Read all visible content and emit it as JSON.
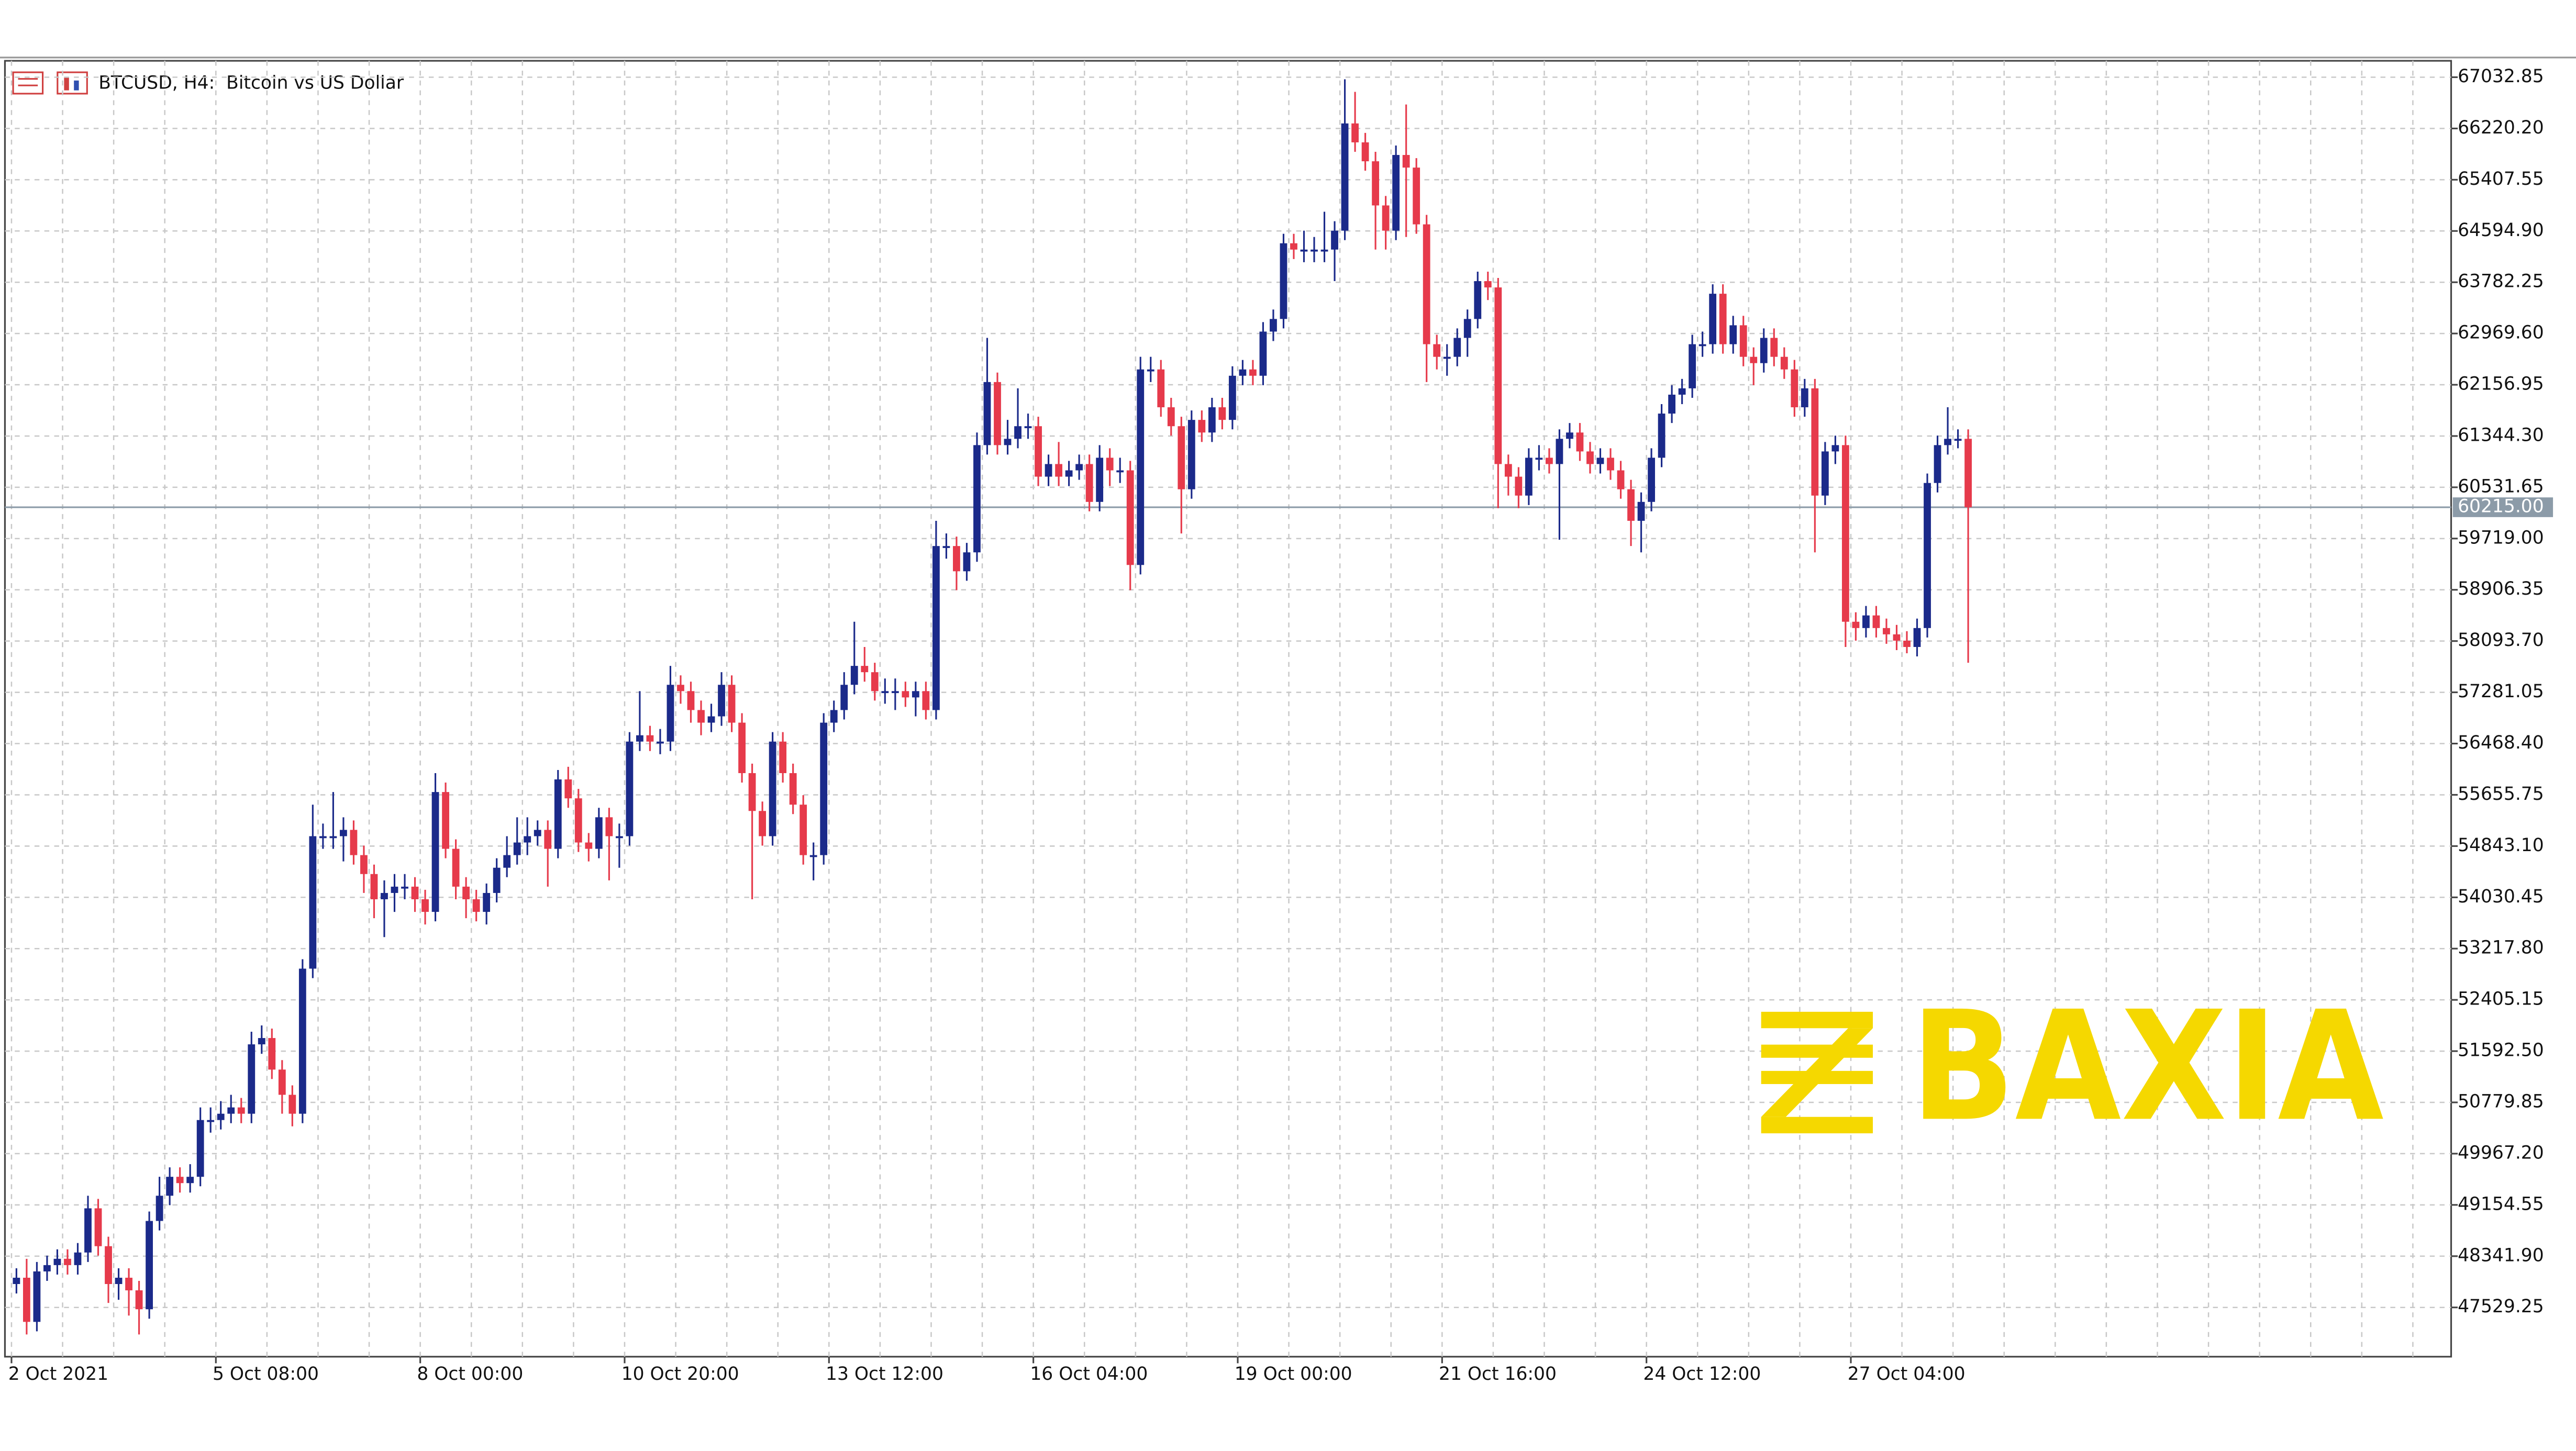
{
  "chart_data": {
    "type": "candlestick",
    "title": "BTCUSD, H4:  Bitcoin vs US Dollar",
    "watermark": "BAXIA",
    "colors": {
      "up": "#1b2a8a",
      "down": "#e63a4b",
      "grid": "#c8c8c8",
      "last": "#8c9ba8",
      "watermark": "#f5d800"
    },
    "grid": true,
    "categories": [
      "2 Oct 2021",
      null,
      null,
      null,
      null,
      null,
      null,
      null,
      null,
      null,
      null,
      null,
      null,
      null,
      null,
      null,
      null,
      null,
      null,
      null,
      "5 Oct 08:00",
      null,
      null,
      null,
      null,
      null,
      null,
      null,
      null,
      null,
      null,
      null,
      null,
      null,
      null,
      null,
      null,
      null,
      null,
      null,
      "8 Oct 00:00",
      null,
      null,
      null,
      null,
      null,
      null,
      null,
      null,
      null,
      null,
      null,
      null,
      null,
      null,
      null,
      null,
      null,
      null,
      null,
      "10 Oct 20:00",
      null,
      null,
      null,
      null,
      null,
      null,
      null,
      null,
      null,
      null,
      null,
      null,
      null,
      null,
      null,
      null,
      null,
      null,
      null,
      "13 Oct 12:00",
      null,
      null,
      null,
      null,
      null,
      null,
      null,
      null,
      null,
      null,
      null,
      null,
      null,
      null,
      null,
      null,
      null,
      null,
      null,
      "16 Oct 04:00",
      null,
      null,
      null,
      null,
      null,
      null,
      null,
      null,
      null,
      null,
      null,
      null,
      null,
      null,
      null,
      null,
      null,
      null,
      null,
      "19 Oct 00:00",
      null,
      null,
      null,
      null,
      null,
      null,
      null,
      null,
      null,
      null,
      null,
      null,
      null,
      null,
      null,
      null,
      null,
      null,
      null,
      "21 Oct 16:00",
      null,
      null,
      null,
      null,
      null,
      null,
      null,
      null,
      null,
      null,
      null,
      null,
      null,
      null,
      null,
      null,
      null,
      null,
      null,
      "24 Oct 12:00",
      null,
      null,
      null,
      null,
      null,
      null,
      null,
      null,
      null,
      null,
      null,
      null,
      null,
      null,
      null,
      null,
      null,
      null,
      null,
      "27 Oct 04:00",
      null,
      null,
      null,
      null,
      null,
      null,
      null,
      null,
      null,
      null,
      null
    ],
    "open": [
      47900,
      48000,
      47300,
      48100,
      48200,
      48300,
      48200,
      48400,
      49100,
      48500,
      47900,
      48000,
      47800,
      47500,
      48900,
      49300,
      49600,
      49500,
      49600,
      50500,
      50500,
      50600,
      50700,
      50600,
      51700,
      51800,
      51300,
      50900,
      50600,
      52900,
      55000,
      55000,
      55000,
      55100,
      54700,
      54400,
      54000,
      54100,
      54200,
      54200,
      54000,
      53800,
      55700,
      54800,
      54200,
      54000,
      53800,
      54100,
      54500,
      54700,
      54900,
      55000,
      55100,
      54800,
      55900,
      55600,
      54900,
      54800,
      55300,
      55000,
      55000,
      56500,
      56600,
      56500,
      56500,
      57400,
      57300,
      57000,
      56800,
      56900,
      57400,
      56800,
      56000,
      55400,
      55000,
      56500,
      56000,
      55500,
      54700,
      54700,
      56800,
      57000,
      57400,
      57700,
      57600,
      57300,
      57300,
      57300,
      57200,
      57300,
      57000,
      59600,
      59600,
      59200,
      59500,
      61200,
      62200,
      61200,
      61300,
      61500,
      61500,
      60700,
      60900,
      60700,
      60800,
      60900,
      60300,
      61000,
      60800,
      60800,
      59300,
      62400,
      62400,
      61800,
      61500,
      60500,
      61600,
      61400,
      61800,
      61600,
      62300,
      62400,
      62300,
      63000,
      63200,
      64400,
      64300,
      64300,
      64300,
      64300,
      64600,
      66300,
      66000,
      65700,
      65000,
      64600,
      65800,
      65600,
      64700,
      62800,
      62600,
      62600,
      62900,
      63200,
      63800,
      63700,
      60900,
      60700,
      60400,
      61000,
      61000,
      60900,
      61300,
      61400,
      61100,
      60900,
      61000,
      60800,
      60500,
      60000,
      60300,
      61000,
      61700,
      62000,
      62100,
      62800,
      62800,
      63600,
      62800,
      63100,
      62600,
      62500,
      62900,
      62600,
      62400,
      61800,
      62100,
      60400,
      61100,
      61200,
      58400,
      58300,
      58500,
      58300,
      58200,
      58100,
      58000,
      58300,
      60600,
      61200,
      61300,
      61300
    ],
    "high": [
      48150,
      48300,
      48250,
      48350,
      48450,
      48450,
      48550,
      49300,
      49250,
      48650,
      48150,
      48150,
      47950,
      49050,
      49600,
      49750,
      49750,
      49800,
      50700,
      50700,
      50800,
      50900,
      50850,
      51900,
      52000,
      51950,
      51450,
      51050,
      53050,
      55500,
      55200,
      55700,
      55300,
      55250,
      54850,
      54550,
      54300,
      54400,
      54400,
      54350,
      54150,
      56000,
      55850,
      54950,
      54350,
      54150,
      54250,
      54650,
      55000,
      55300,
      55300,
      55250,
      55250,
      56050,
      56100,
      55750,
      55050,
      55450,
      55450,
      55200,
      56650,
      57300,
      56750,
      56700,
      57700,
      57550,
      57450,
      57150,
      57100,
      57600,
      57550,
      56950,
      56150,
      55550,
      56650,
      56650,
      56150,
      55650,
      54900,
      56950,
      57150,
      57600,
      58400,
      58000,
      57750,
      57500,
      57500,
      57450,
      57450,
      57450,
      60000,
      59800,
      59750,
      59650,
      61400,
      62900,
      62350,
      61600,
      62100,
      61700,
      61650,
      61050,
      61250,
      60950,
      61050,
      61050,
      61200,
      61150,
      61000,
      60950,
      62600,
      62600,
      62550,
      61950,
      61650,
      61750,
      61750,
      61950,
      61950,
      62450,
      62550,
      62550,
      63150,
      63350,
      64550,
      64550,
      64600,
      64500,
      64900,
      64750,
      67000,
      66800,
      66150,
      65850,
      65150,
      65950,
      66600,
      65750,
      64850,
      62950,
      62800,
      63050,
      63350,
      63950,
      63950,
      63850,
      61050,
      60850,
      61150,
      61200,
      61150,
      61450,
      61550,
      61550,
      61250,
      61150,
      61150,
      60950,
      60650,
      60450,
      61150,
      61850,
      62150,
      62250,
      62950,
      63000,
      63750,
      63750,
      63250,
      63250,
      62750,
      63050,
      63050,
      62750,
      62550,
      62250,
      62250,
      61250,
      61350,
      61350,
      58550,
      58650,
      58650,
      58450,
      58350,
      58250,
      58450,
      60750,
      61350,
      61800,
      61450,
      61450
    ],
    "low": [
      47750,
      47100,
      47150,
      47950,
      48050,
      48050,
      48050,
      48250,
      48350,
      47600,
      47650,
      47400,
      47100,
      47350,
      48750,
      49150,
      49350,
      49350,
      49450,
      50300,
      50350,
      50450,
      50450,
      50450,
      51550,
      51150,
      50600,
      50400,
      50450,
      52750,
      54800,
      54800,
      54600,
      54550,
      54100,
      53700,
      53400,
      53800,
      54000,
      53800,
      53600,
      53650,
      54650,
      54000,
      53700,
      53650,
      53600,
      53950,
      54350,
      54550,
      54700,
      54850,
      54200,
      54650,
      55450,
      54750,
      54600,
      54650,
      54300,
      54500,
      54850,
      56350,
      56350,
      56300,
      56350,
      57100,
      56800,
      56600,
      56650,
      56750,
      56650,
      55850,
      54000,
      54850,
      54850,
      55850,
      55350,
      54550,
      54300,
      54550,
      56650,
      56850,
      57250,
      57450,
      57150,
      57100,
      57000,
      57050,
      56900,
      56850,
      56850,
      59400,
      58900,
      59050,
      59350,
      61050,
      61050,
      61050,
      61150,
      61300,
      60550,
      60550,
      60550,
      60550,
      60650,
      60150,
      60150,
      60550,
      60600,
      58900,
      59150,
      62200,
      61650,
      61350,
      59800,
      60350,
      61250,
      61250,
      61450,
      61450,
      62150,
      62150,
      62150,
      62850,
      63050,
      64150,
      64100,
      64100,
      64100,
      63800,
      64450,
      65850,
      65550,
      64300,
      64300,
      64450,
      64500,
      64550,
      62200,
      62400,
      62300,
      62450,
      62600,
      63050,
      63500,
      60200,
      60400,
      60200,
      60250,
      60800,
      60750,
      59700,
      61150,
      60950,
      60750,
      60750,
      60650,
      60350,
      59600,
      59500,
      60150,
      60850,
      61550,
      61850,
      61950,
      62600,
      62650,
      62650,
      62650,
      62450,
      62150,
      62350,
      62450,
      62250,
      61650,
      61650,
      59500,
      60250,
      60900,
      58000,
      58100,
      58150,
      58150,
      58050,
      57950,
      57900,
      57850,
      58150,
      60450,
      61050,
      61150,
      57750
    ],
    "close": [
      48000,
      47300,
      48100,
      48200,
      48300,
      48200,
      48400,
      49100,
      48500,
      47900,
      48000,
      47800,
      47500,
      48900,
      49300,
      49600,
      49500,
      49600,
      50500,
      50500,
      50600,
      50700,
      50600,
      51700,
      51800,
      51300,
      50900,
      50600,
      52900,
      55000,
      55000,
      55000,
      55100,
      54700,
      54400,
      54000,
      54100,
      54200,
      54200,
      54000,
      53800,
      55700,
      54800,
      54200,
      54000,
      53800,
      54100,
      54500,
      54700,
      54900,
      55000,
      55100,
      54800,
      55900,
      55600,
      54900,
      54800,
      55300,
      55000,
      55000,
      56500,
      56600,
      56500,
      56500,
      57400,
      57300,
      57000,
      56800,
      56900,
      57400,
      56800,
      56000,
      55400,
      55000,
      56500,
      56000,
      55500,
      54700,
      54700,
      56800,
      57000,
      57400,
      57700,
      57600,
      57300,
      57300,
      57300,
      57200,
      57300,
      57000,
      59600,
      59600,
      59200,
      59500,
      61200,
      62200,
      61200,
      61300,
      61500,
      61500,
      60700,
      60900,
      60700,
      60800,
      60900,
      60300,
      61000,
      60800,
      60800,
      59300,
      62400,
      62400,
      61800,
      61500,
      60500,
      61600,
      61400,
      61800,
      61600,
      62300,
      62400,
      62300,
      63000,
      63200,
      64400,
      64300,
      64300,
      64300,
      64300,
      64600,
      66300,
      66000,
      65700,
      65000,
      64600,
      65800,
      65600,
      64700,
      62800,
      62600,
      62600,
      62900,
      63200,
      63800,
      63700,
      60900,
      60700,
      60400,
      61000,
      61000,
      60900,
      61300,
      61400,
      61100,
      60900,
      61000,
      60800,
      60500,
      60000,
      60300,
      61000,
      61700,
      62000,
      62100,
      62800,
      62800,
      63600,
      62800,
      63100,
      62600,
      62500,
      62900,
      62600,
      62400,
      61800,
      62100,
      60400,
      61100,
      61200,
      58400,
      58300,
      58500,
      58300,
      58200,
      58100,
      58000,
      58300,
      60600,
      61200,
      61300,
      61300,
      60215
    ],
    "last_price": {
      "value": 60215,
      "label": "60215.00"
    },
    "ylim": [
      46748,
      67293
    ],
    "yticks": [
      67032.85,
      {
        "value": 66220.2,
        "label": "66220.20"
      },
      65407.55,
      {
        "value": 64594.9,
        "label": "64594.90"
      },
      63782.25,
      {
        "value": 62969.6,
        "label": "62969.60"
      },
      62156.95,
      {
        "value": 61344.3,
        "label": "61344.30"
      },
      60531.65,
      {
        "value": 59719,
        "label": "59719.00"
      },
      58906.35,
      {
        "value": 58093.7,
        "label": "58093.70"
      },
      57281.05,
      {
        "value": 56468.4,
        "label": "56468.40"
      },
      55655.75,
      {
        "value": 54843.1,
        "label": "54843.10"
      },
      54030.45,
      {
        "value": 53217.8,
        "label": "53217.80"
      },
      52405.15,
      {
        "value": 51592.5,
        "label": "51592.50"
      },
      50779.85,
      {
        "value": 49967.2,
        "label": "49967.20"
      },
      49154.55,
      {
        "value": 48341.9,
        "label": "48341.90"
      },
      47529.25
    ]
  }
}
